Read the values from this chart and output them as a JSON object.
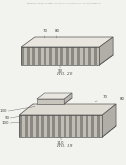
{
  "bg_color": "#f2f2ee",
  "header_text": "Patent Application Publication   May 24, 2011   Sheet 14 of 17   US 2011/0120874 A1",
  "fig19_label": "FIG. 19",
  "fig20_label": "FIG. 20",
  "fig19_nums": [
    "70",
    "80",
    "130",
    "90",
    "100",
    "110"
  ],
  "fig20_nums": [
    "70",
    "80",
    "90"
  ],
  "top1_color": "#dddbd2",
  "top2_color": "#e8e6de",
  "right1_color": "#b0aea6",
  "stripe_dark": "#8a8880",
  "stripe_light": "#c0bdb5",
  "edge_color": "#555555",
  "text_color": "#444444",
  "line_color": "#666666"
}
